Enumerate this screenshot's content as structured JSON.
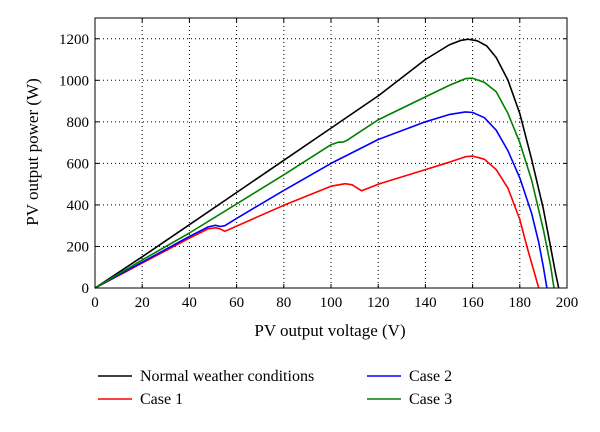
{
  "chart_data": {
    "type": "line",
    "xlabel": "PV output voltage (V)",
    "ylabel": "PV output power (W)",
    "xlim": [
      0,
      200
    ],
    "ylim": [
      0,
      1300
    ],
    "xticks": [
      0,
      20,
      40,
      60,
      80,
      100,
      120,
      140,
      160,
      180,
      200
    ],
    "yticks": [
      0,
      200,
      400,
      600,
      800,
      1000,
      1200
    ],
    "grid": "dotted",
    "legend_position": "below",
    "series": [
      {
        "name": "Normal weather conditions",
        "color": "#000000",
        "x": [
          0,
          20,
          40,
          60,
          80,
          100,
          120,
          140,
          150,
          155,
          158,
          162,
          166,
          170,
          175,
          180,
          185,
          190,
          193,
          195,
          196.5
        ],
        "y": [
          0,
          150,
          305,
          460,
          615,
          770,
          925,
          1100,
          1170,
          1192,
          1198,
          1190,
          1165,
          1110,
          1000,
          840,
          620,
          380,
          200,
          80,
          0
        ]
      },
      {
        "name": "Case 1",
        "color": "#ff0000",
        "x": [
          0,
          20,
          40,
          48,
          51,
          53,
          55,
          60,
          80,
          100,
          106,
          109,
          111,
          113,
          120,
          140,
          150,
          157,
          160,
          165,
          170,
          175,
          180,
          183,
          186,
          188
        ],
        "y": [
          0,
          120,
          240,
          285,
          290,
          285,
          273,
          298,
          398,
          490,
          502,
          497,
          482,
          468,
          500,
          570,
          605,
          632,
          635,
          620,
          570,
          480,
          330,
          200,
          80,
          0
        ]
      },
      {
        "name": "Case 2",
        "color": "#0000ff",
        "x": [
          0,
          20,
          40,
          48,
          51,
          53,
          55,
          60,
          80,
          100,
          120,
          140,
          150,
          157,
          160,
          165,
          170,
          175,
          180,
          185,
          188,
          190,
          191.5
        ],
        "y": [
          0,
          124,
          248,
          294,
          302,
          296,
          300,
          335,
          470,
          600,
          715,
          800,
          835,
          848,
          845,
          820,
          760,
          660,
          530,
          360,
          220,
          100,
          0
        ]
      },
      {
        "name": "Case 3",
        "color": "#008000",
        "x": [
          0,
          20,
          40,
          60,
          80,
          100,
          103,
          105,
          107,
          110,
          120,
          140,
          150,
          157,
          160,
          165,
          170,
          175,
          180,
          185,
          190,
          193,
          194.5
        ],
        "y": [
          0,
          135,
          265,
          405,
          545,
          690,
          702,
          702,
          712,
          735,
          810,
          920,
          975,
          1008,
          1010,
          990,
          945,
          840,
          700,
          520,
          280,
          110,
          0
        ]
      }
    ]
  },
  "legend": [
    {
      "label": "Normal weather conditions",
      "color": "#000000"
    },
    {
      "label": "Case 1",
      "color": "#ff0000"
    },
    {
      "label": "Case 2",
      "color": "#0000ff"
    },
    {
      "label": "Case 3",
      "color": "#008000"
    }
  ]
}
